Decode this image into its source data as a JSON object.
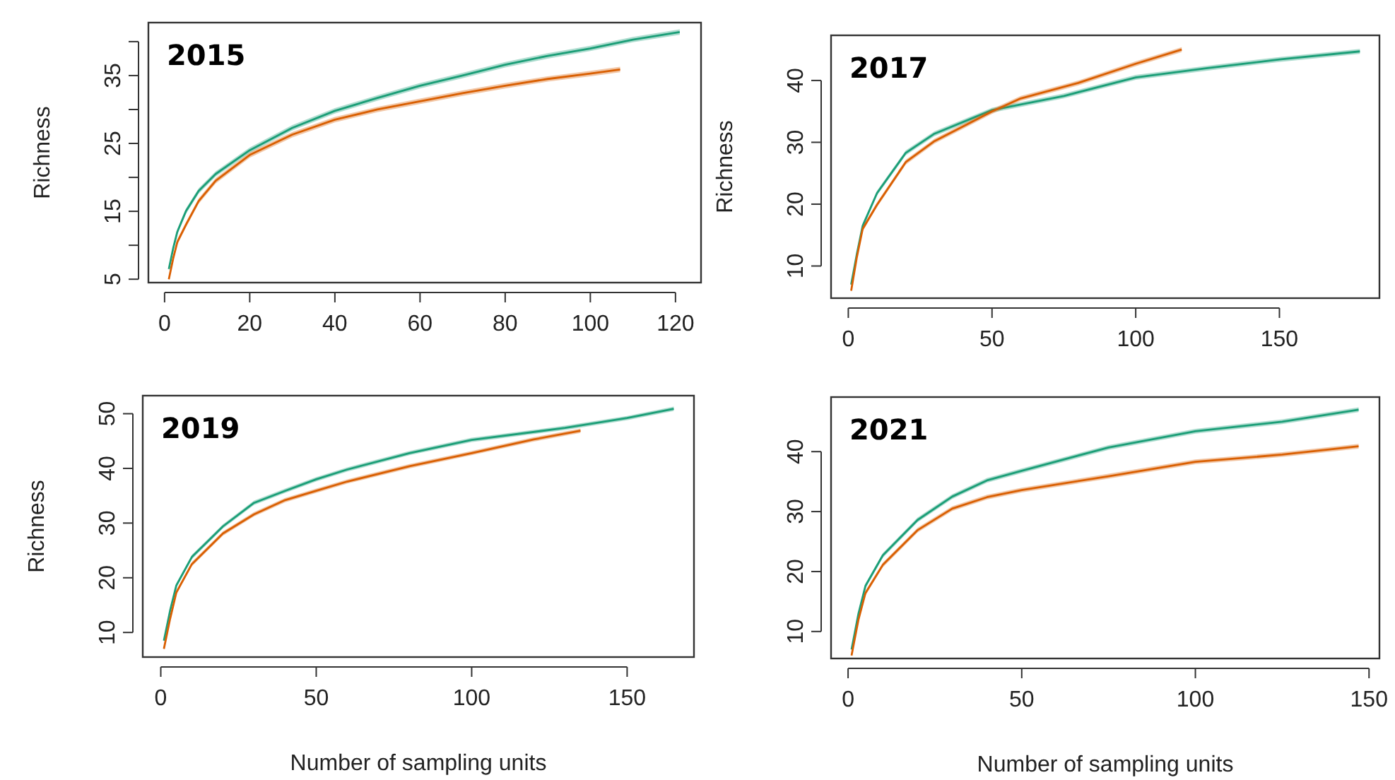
{
  "chart_data": [
    {
      "type": "line",
      "title": "2015",
      "ylabel": "Richness",
      "xlim": [
        -3.8,
        126
      ],
      "ylim": [
        4.5,
        42.8
      ],
      "xticks": [
        0,
        20,
        40,
        60,
        80,
        100,
        120
      ],
      "yticks": [
        5,
        {
          "value": 10,
          "label": null
        },
        15,
        {
          "value": 20,
          "label": null
        },
        25,
        {
          "value": 30,
          "label": null
        },
        35,
        {
          "value": 40,
          "label": null
        }
      ],
      "grid": false,
      "line_style": "solid",
      "marker": "none",
      "series": [
        {
          "color": "#1b9e77",
          "x": [
            1,
            2,
            3,
            5,
            8,
            12,
            20,
            30,
            40,
            50,
            60,
            70,
            80,
            90,
            100,
            110,
            121
          ],
          "values": [
            6.5,
            9.5,
            12,
            15,
            18,
            20.5,
            24,
            27.3,
            29.8,
            31.7,
            33.5,
            35,
            36.6,
            37.9,
            39,
            40.3,
            41.4
          ],
          "lower": [
            6.2,
            9.1,
            11.6,
            14.6,
            17.6,
            20.1,
            23.6,
            26.9,
            29.4,
            31.3,
            33.1,
            34.6,
            36.2,
            37.5,
            38.6,
            39.9,
            41
          ],
          "upper": [
            6.8,
            9.9,
            12.4,
            15.4,
            18.4,
            20.9,
            24.4,
            27.7,
            30.2,
            32.1,
            33.9,
            35.4,
            37,
            38.3,
            39.4,
            40.7,
            41.8
          ]
        },
        {
          "color": "#d95f02",
          "x": [
            1,
            2,
            3,
            5,
            8,
            12,
            20,
            30,
            40,
            50,
            60,
            70,
            80,
            90,
            100,
            107
          ],
          "values": [
            5,
            8,
            10.5,
            13,
            16.5,
            19.5,
            23.3,
            26.3,
            28.5,
            30,
            31.2,
            32.4,
            33.5,
            34.5,
            35.3,
            35.9
          ],
          "lower": [
            4.8,
            7.6,
            10.1,
            12.6,
            16.1,
            19.1,
            22.9,
            25.9,
            28.1,
            29.6,
            30.8,
            32,
            33.1,
            34.1,
            34.9,
            35.5
          ],
          "upper": [
            5.2,
            8.4,
            10.9,
            13.4,
            16.9,
            19.9,
            23.7,
            26.7,
            28.9,
            30.4,
            31.6,
            32.8,
            33.9,
            34.9,
            35.7,
            36.3
          ]
        }
      ]
    },
    {
      "type": "line",
      "title": "2017",
      "ylabel": "Richness",
      "xlim": [
        -6,
        184.8
      ],
      "ylim": [
        4.8,
        47.3
      ],
      "xticks": [
        0,
        50,
        100,
        150
      ],
      "yticks": [
        10,
        20,
        30,
        40
      ],
      "grid": false,
      "line_style": "solid",
      "marker": "none",
      "series": [
        {
          "color": "#1b9e77",
          "x": [
            1,
            3,
            5,
            10,
            20,
            30,
            50,
            75,
            100,
            125,
            150,
            178
          ],
          "values": [
            7,
            12,
            16.5,
            21.8,
            28.3,
            31.4,
            35.2,
            37.5,
            40.5,
            42,
            43.4,
            44.7
          ],
          "lower": [
            6.7,
            11.6,
            16.1,
            21.4,
            27.9,
            31,
            34.8,
            37.1,
            40.1,
            41.6,
            43,
            44.3
          ],
          "upper": [
            7.3,
            12.4,
            16.9,
            22.2,
            28.7,
            31.8,
            35.6,
            37.9,
            40.9,
            42.4,
            43.8,
            45.1
          ]
        },
        {
          "color": "#d95f02",
          "x": [
            1,
            3,
            5,
            10,
            20,
            30,
            50,
            60,
            80,
            100,
            116
          ],
          "values": [
            6,
            11.5,
            16,
            19.9,
            26.8,
            30.2,
            35,
            37.1,
            39.6,
            42.7,
            45
          ],
          "lower": [
            5.8,
            11.1,
            15.6,
            19.5,
            26.4,
            29.8,
            34.6,
            36.7,
            39.2,
            42.3,
            44.6
          ],
          "upper": [
            6.2,
            11.9,
            16.4,
            20.3,
            27.2,
            30.6,
            35.4,
            37.5,
            40,
            43.1,
            45.4
          ]
        }
      ]
    },
    {
      "type": "line",
      "title": "2019",
      "xlabel": "Number of sampling units",
      "ylabel": "Richness",
      "xlim": [
        -5.8,
        171.5
      ],
      "ylim": [
        5.5,
        53.3
      ],
      "xticks": [
        0,
        50,
        100,
        150
      ],
      "yticks": [
        10,
        20,
        30,
        40,
        50
      ],
      "grid": false,
      "line_style": "solid",
      "marker": "none",
      "series": [
        {
          "color": "#1b9e77",
          "x": [
            1,
            3,
            5,
            10,
            20,
            30,
            40,
            50,
            60,
            80,
            100,
            130,
            150,
            165
          ],
          "values": [
            8.5,
            14,
            18.6,
            23.8,
            29.4,
            33.7,
            35.9,
            38,
            39.8,
            42.8,
            45.2,
            47.4,
            49.2,
            50.9
          ],
          "lower": [
            8.2,
            13.6,
            18.2,
            23.4,
            29,
            33.3,
            35.5,
            37.6,
            39.4,
            42.4,
            44.8,
            47,
            48.8,
            50.5
          ],
          "upper": [
            8.8,
            14.4,
            19,
            24.2,
            29.8,
            34.1,
            36.3,
            38.4,
            40.2,
            43.2,
            45.6,
            47.8,
            49.6,
            51.3
          ]
        },
        {
          "color": "#d95f02",
          "x": [
            1,
            3,
            5,
            10,
            20,
            30,
            40,
            50,
            60,
            80,
            100,
            120,
            135
          ],
          "values": [
            7,
            12.5,
            17.3,
            22.5,
            28.1,
            31.6,
            34.2,
            35.9,
            37.6,
            40.4,
            42.8,
            45.3,
            46.9
          ],
          "lower": [
            6.8,
            12.1,
            16.9,
            22.1,
            27.7,
            31.2,
            33.8,
            35.5,
            37.2,
            40,
            42.4,
            44.9,
            46.5
          ],
          "upper": [
            7.2,
            12.9,
            17.7,
            22.9,
            28.5,
            32,
            34.6,
            36.3,
            38,
            40.8,
            43.2,
            45.7,
            47.3
          ]
        }
      ]
    },
    {
      "type": "line",
      "title": "2021",
      "xlabel": "Number of sampling units",
      "xlim": [
        -4.9,
        153
      ],
      "ylim": [
        5.5,
        49.1
      ],
      "xticks": [
        0,
        50,
        100,
        150
      ],
      "yticks": [
        10,
        20,
        30,
        40
      ],
      "grid": false,
      "line_style": "solid",
      "marker": "none",
      "series": [
        {
          "color": "#1b9e77",
          "x": [
            1,
            3,
            5,
            10,
            20,
            30,
            40,
            50,
            75,
            100,
            125,
            147
          ],
          "values": [
            7,
            13,
            17.6,
            22.7,
            28.6,
            32.5,
            35.2,
            36.8,
            40.7,
            43.4,
            45,
            47
          ],
          "lower": [
            6.7,
            12.6,
            17.2,
            22.3,
            28.2,
            32.1,
            34.8,
            36.4,
            40.3,
            43,
            44.6,
            46.6
          ],
          "upper": [
            7.3,
            13.4,
            18,
            23.1,
            29,
            32.9,
            35.6,
            37.2,
            41.1,
            43.8,
            45.4,
            47.4
          ]
        },
        {
          "color": "#d95f02",
          "x": [
            1,
            3,
            5,
            10,
            20,
            30,
            40,
            50,
            75,
            100,
            125,
            147
          ],
          "values": [
            6,
            12,
            16.4,
            21.1,
            26.9,
            30.5,
            32.4,
            33.6,
            35.9,
            38.3,
            39.5,
            40.9
          ],
          "lower": [
            5.8,
            11.6,
            16,
            20.7,
            26.5,
            30.1,
            32,
            33.2,
            35.5,
            37.9,
            39.1,
            40.5
          ],
          "upper": [
            6.2,
            12.4,
            16.8,
            21.5,
            27.3,
            30.9,
            32.8,
            34,
            36.3,
            38.7,
            39.9,
            41.3
          ]
        }
      ]
    }
  ]
}
